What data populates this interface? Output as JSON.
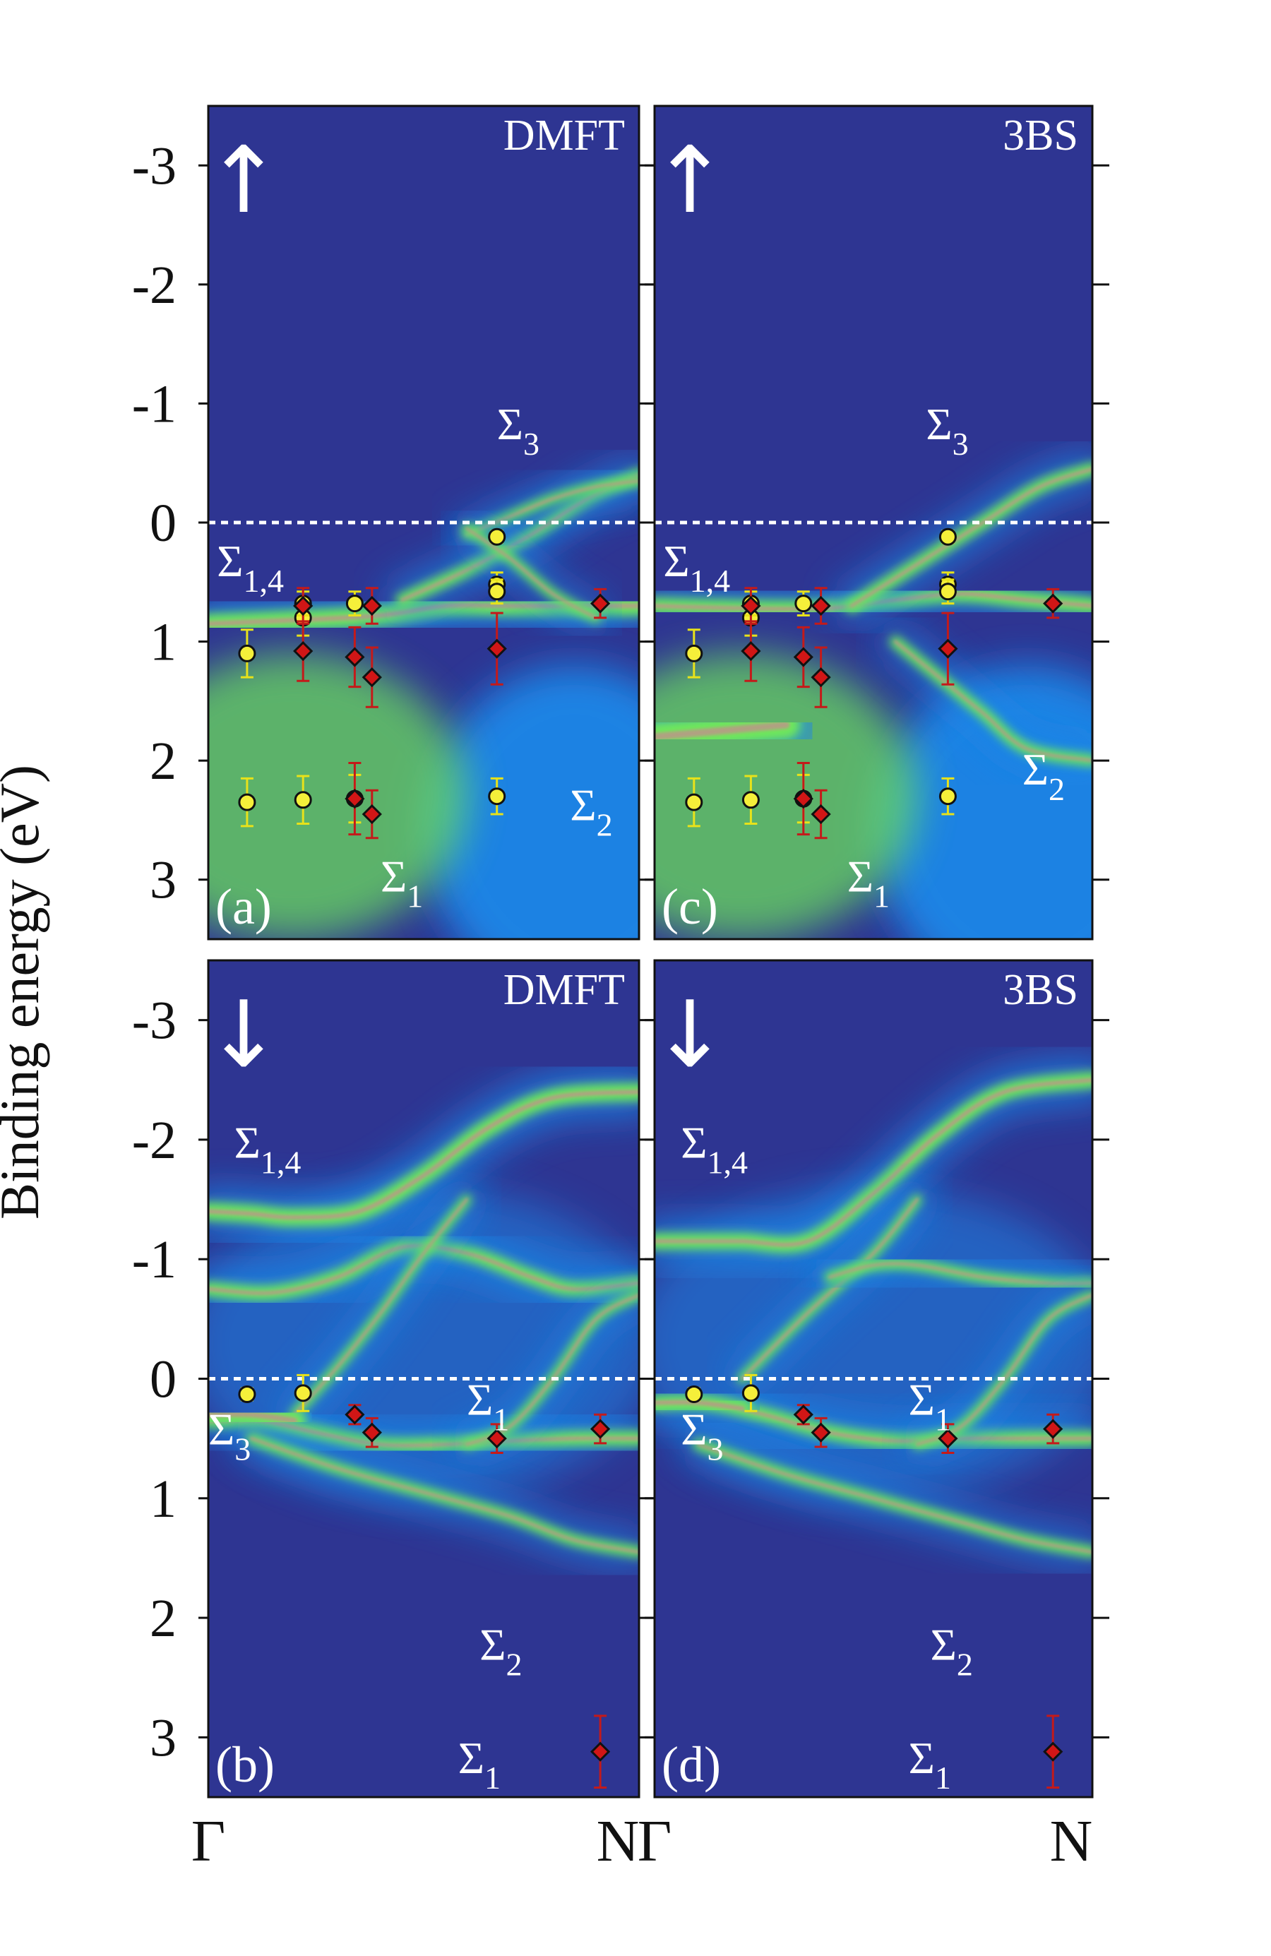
{
  "y_axis_label": "Binding energy (eV)",
  "colors": {
    "background": "#2e3592",
    "band_green": "#6fe85a",
    "band_core": "#b89a86",
    "water_blue": "#1c87e8",
    "circle_fill": "#f5ef3a",
    "diamond_fill": "#d11616",
    "yellow_err": "#e8e21a",
    "red_err": "#c41a1a",
    "fermi_line": "#ffffff"
  },
  "chart_data": [
    {
      "id": "a",
      "type": "heatmap",
      "title": "DMFT",
      "panel_label": "(a)",
      "spin": "↑",
      "ylabel": "Binding energy (eV)",
      "ylim": [
        3.5,
        -3.5
      ],
      "yticks": [
        "-3",
        "-2",
        "-1",
        "0",
        "1",
        "2",
        "3"
      ],
      "ytick_values": [
        -3,
        -2,
        -1,
        0,
        1,
        2,
        3
      ],
      "xticks": [
        "Γ",
        "N"
      ],
      "xlim": [
        0,
        1
      ],
      "fermi_level": 0,
      "labels": [
        {
          "base": "Σ",
          "sub": "1,4",
          "x": 0.02,
          "y": 0.45
        },
        {
          "base": "Σ",
          "sub": "3",
          "x": 0.67,
          "y": -0.7
        },
        {
          "base": "Σ",
          "sub": "1",
          "x": 0.4,
          "y": 3.1
        },
        {
          "base": "Σ",
          "sub": "2",
          "x": 0.84,
          "y": 2.5
        }
      ],
      "bands": [
        {
          "x": [
            0,
            0.2,
            0.4,
            0.55,
            0.7,
            0.85,
            1.0
          ],
          "y": [
            0.85,
            0.82,
            0.78,
            0.7,
            0.7,
            0.7,
            0.7
          ],
          "width": 0.12
        },
        {
          "x": [
            0.45,
            0.6,
            0.75,
            0.88,
            1.0
          ],
          "y": [
            0.65,
            0.4,
            0.1,
            -0.2,
            -0.4
          ],
          "width": 0.08
        },
        {
          "x": [
            0.6,
            0.7,
            0.8,
            0.9,
            1.0
          ],
          "y": [
            0.1,
            -0.05,
            -0.2,
            -0.3,
            -0.35
          ],
          "width": 0.06
        },
        {
          "x": [
            0.6,
            0.7,
            0.8,
            0.9
          ],
          "y": [
            0.05,
            0.3,
            0.6,
            0.8
          ],
          "width": 0.06
        }
      ],
      "circles": [
        {
          "x": 0.09,
          "y": 1.1,
          "err": 0.2
        },
        {
          "x": 0.09,
          "y": 2.35,
          "err": 0.2
        },
        {
          "x": 0.22,
          "y": 0.8,
          "err": 0.15
        },
        {
          "x": 0.22,
          "y": 0.68,
          "err": 0.1
        },
        {
          "x": 0.22,
          "y": 2.33,
          "err": 0.2
        },
        {
          "x": 0.34,
          "y": 0.68,
          "err": 0.1
        },
        {
          "x": 0.34,
          "y": 2.32,
          "err": 0.2
        },
        {
          "x": 0.67,
          "y": 0.12,
          "err": 0.05
        },
        {
          "x": 0.67,
          "y": 0.52,
          "err": 0.1
        },
        {
          "x": 0.67,
          "y": 0.58,
          "err": 0.1
        },
        {
          "x": 0.67,
          "y": 2.3,
          "err": 0.15
        }
      ],
      "diamonds": [
        {
          "x": 0.22,
          "y": 1.08,
          "err": 0.25
        },
        {
          "x": 0.22,
          "y": 0.7,
          "err": 0.15
        },
        {
          "x": 0.34,
          "y": 1.13,
          "err": 0.25
        },
        {
          "x": 0.34,
          "y": 2.32,
          "err": 0.3
        },
        {
          "x": 0.38,
          "y": 0.7,
          "err": 0.15
        },
        {
          "x": 0.38,
          "y": 1.3,
          "err": 0.25
        },
        {
          "x": 0.38,
          "y": 2.45,
          "err": 0.2
        },
        {
          "x": 0.67,
          "y": 1.06,
          "err": 0.3
        },
        {
          "x": 0.91,
          "y": 0.68,
          "err": 0.12
        }
      ]
    },
    {
      "id": "c",
      "type": "heatmap",
      "title": "3BS",
      "panel_label": "(c)",
      "spin": "↑",
      "ylabel": "Binding energy (eV)",
      "ylim": [
        3.5,
        -3.5
      ],
      "yticks": [
        "-3",
        "-2",
        "-1",
        "0",
        "1",
        "2",
        "3"
      ],
      "ytick_values": [
        -3,
        -2,
        -1,
        0,
        1,
        2,
        3
      ],
      "xticks": [
        "Γ",
        "N"
      ],
      "xlim": [
        0,
        1
      ],
      "fermi_level": 0,
      "labels": [
        {
          "base": "Σ",
          "sub": "1,4",
          "x": 0.02,
          "y": 0.45
        },
        {
          "base": "Σ",
          "sub": "3",
          "x": 0.62,
          "y": -0.7
        },
        {
          "base": "Σ",
          "sub": "1",
          "x": 0.44,
          "y": 3.1
        },
        {
          "base": "Σ",
          "sub": "2",
          "x": 0.84,
          "y": 2.2
        }
      ],
      "bands": [
        {
          "x": [
            0,
            0.2,
            0.4,
            0.55,
            0.7,
            0.85,
            1.0
          ],
          "y": [
            0.7,
            0.72,
            0.72,
            0.65,
            0.6,
            0.65,
            0.7
          ],
          "width": 0.1
        },
        {
          "x": [
            0.45,
            0.6,
            0.75,
            0.88,
            1.0
          ],
          "y": [
            0.7,
            0.35,
            0.0,
            -0.3,
            -0.45
          ],
          "width": 0.08
        },
        {
          "x": [
            0.55,
            0.65,
            0.75,
            0.85,
            1.0
          ],
          "y": [
            1.0,
            1.3,
            1.6,
            1.9,
            2.0
          ],
          "width": 0.07
        },
        {
          "x": [
            0,
            0.15,
            0.3
          ],
          "y": [
            1.8,
            1.75,
            1.7
          ],
          "width": 0.18
        }
      ],
      "circles": [
        {
          "x": 0.09,
          "y": 1.1,
          "err": 0.2
        },
        {
          "x": 0.09,
          "y": 2.35,
          "err": 0.2
        },
        {
          "x": 0.22,
          "y": 0.8,
          "err": 0.15
        },
        {
          "x": 0.22,
          "y": 0.68,
          "err": 0.1
        },
        {
          "x": 0.22,
          "y": 2.33,
          "err": 0.2
        },
        {
          "x": 0.34,
          "y": 0.68,
          "err": 0.1
        },
        {
          "x": 0.34,
          "y": 2.32,
          "err": 0.2
        },
        {
          "x": 0.67,
          "y": 0.12,
          "err": 0.05
        },
        {
          "x": 0.67,
          "y": 0.52,
          "err": 0.1
        },
        {
          "x": 0.67,
          "y": 0.58,
          "err": 0.1
        },
        {
          "x": 0.67,
          "y": 2.3,
          "err": 0.15
        }
      ],
      "diamonds": [
        {
          "x": 0.22,
          "y": 1.08,
          "err": 0.25
        },
        {
          "x": 0.22,
          "y": 0.7,
          "err": 0.15
        },
        {
          "x": 0.34,
          "y": 1.13,
          "err": 0.25
        },
        {
          "x": 0.34,
          "y": 2.32,
          "err": 0.3
        },
        {
          "x": 0.38,
          "y": 0.7,
          "err": 0.15
        },
        {
          "x": 0.38,
          "y": 1.3,
          "err": 0.25
        },
        {
          "x": 0.38,
          "y": 2.45,
          "err": 0.2
        },
        {
          "x": 0.67,
          "y": 1.06,
          "err": 0.3
        },
        {
          "x": 0.91,
          "y": 0.68,
          "err": 0.12
        }
      ]
    },
    {
      "id": "b",
      "type": "heatmap",
      "title": "DMFT",
      "panel_label": "(b)",
      "spin": "↓",
      "ylabel": "Binding energy (eV)",
      "ylim": [
        3.5,
        -3.5
      ],
      "yticks": [
        "-3",
        "-2",
        "-1",
        "0",
        "1",
        "2",
        "3"
      ],
      "ytick_values": [
        -3,
        -2,
        -1,
        0,
        1,
        2,
        3
      ],
      "xticks": [
        "Γ",
        "N"
      ],
      "xlim": [
        0,
        1
      ],
      "fermi_level": 0,
      "labels": [
        {
          "base": "Σ",
          "sub": "1,4",
          "x": 0.06,
          "y": -1.85
        },
        {
          "base": "Σ",
          "sub": "3",
          "x": 0.0,
          "y": 0.55
        },
        {
          "base": "Σ",
          "sub": "1",
          "x": 0.6,
          "y": 0.3
        },
        {
          "base": "Σ",
          "sub": "2",
          "x": 0.63,
          "y": 2.35
        },
        {
          "base": "Σ",
          "sub": "1",
          "x": 0.58,
          "y": 3.3
        }
      ],
      "bands": [
        {
          "x": [
            0,
            0.1,
            0.2,
            0.35,
            0.5,
            0.65,
            0.8,
            1.0
          ],
          "y": [
            -1.4,
            -1.38,
            -1.35,
            -1.4,
            -1.7,
            -2.1,
            -2.35,
            -2.4
          ],
          "width": 0.11
        },
        {
          "x": [
            0,
            0.15,
            0.3,
            0.45,
            0.6,
            0.75,
            0.85,
            1.0
          ],
          "y": [
            -0.75,
            -0.72,
            -0.85,
            -1.1,
            -1.05,
            -0.85,
            -0.75,
            -0.8
          ],
          "width": 0.09
        },
        {
          "x": [
            0.2,
            0.3,
            0.4,
            0.5,
            0.6
          ],
          "y": [
            0.3,
            -0.1,
            -0.55,
            -1.05,
            -1.5
          ],
          "width": 0.06
        },
        {
          "x": [
            0,
            0.12,
            0.25,
            0.4,
            0.55,
            0.7,
            0.85,
            1.0
          ],
          "y": [
            0.35,
            0.35,
            0.45,
            0.55,
            0.55,
            0.52,
            0.5,
            0.5
          ],
          "width": 0.09
        },
        {
          "x": [
            0.6,
            0.7,
            0.8,
            0.9,
            1.0
          ],
          "y": [
            0.55,
            0.4,
            0.0,
            -0.5,
            -0.7
          ],
          "width": 0.06
        },
        {
          "x": [
            0.1,
            0.3,
            0.5,
            0.7,
            0.85,
            1.0
          ],
          "y": [
            0.5,
            0.75,
            0.95,
            1.15,
            1.35,
            1.45
          ],
          "width": 0.07
        },
        {
          "x": [
            0,
            0.1,
            0.2
          ],
          "y": [
            0.3,
            0.3,
            0.35
          ],
          "width": 0.14
        }
      ],
      "circles": [
        {
          "x": 0.09,
          "y": 0.13,
          "err": 0.05
        },
        {
          "x": 0.22,
          "y": 0.12,
          "err": 0.15
        }
      ],
      "diamonds": [
        {
          "x": 0.34,
          "y": 0.3,
          "err": 0.08
        },
        {
          "x": 0.38,
          "y": 0.45,
          "err": 0.12
        },
        {
          "x": 0.67,
          "y": 0.5,
          "err": 0.12
        },
        {
          "x": 0.91,
          "y": 0.42,
          "err": 0.12
        },
        {
          "x": 0.91,
          "y": 3.12,
          "err": 0.3
        }
      ]
    },
    {
      "id": "d",
      "type": "heatmap",
      "title": "3BS",
      "panel_label": "(d)",
      "spin": "↓",
      "ylabel": "Binding energy (eV)",
      "ylim": [
        3.5,
        -3.5
      ],
      "yticks": [
        "-3",
        "-2",
        "-1",
        "0",
        "1",
        "2",
        "3"
      ],
      "ytick_values": [
        -3,
        -2,
        -1,
        0,
        1,
        2,
        3
      ],
      "xticks": [
        "Γ",
        "N"
      ],
      "xlim": [
        0,
        1
      ],
      "fermi_level": 0,
      "labels": [
        {
          "base": "Σ",
          "sub": "1,4",
          "x": 0.06,
          "y": -1.85
        },
        {
          "base": "Σ",
          "sub": "3",
          "x": 0.06,
          "y": 0.55
        },
        {
          "base": "Σ",
          "sub": "1",
          "x": 0.58,
          "y": 0.3
        },
        {
          "base": "Σ",
          "sub": "2",
          "x": 0.63,
          "y": 2.35
        },
        {
          "base": "Σ",
          "sub": "1",
          "x": 0.58,
          "y": 3.3
        }
      ],
      "bands": [
        {
          "x": [
            0,
            0.1,
            0.2,
            0.35,
            0.5,
            0.65,
            0.8,
            1.0
          ],
          "y": [
            -1.15,
            -1.15,
            -1.15,
            -1.15,
            -1.55,
            -2.05,
            -2.4,
            -2.5
          ],
          "width": 0.1
        },
        {
          "x": [
            0.2,
            0.35,
            0.5,
            0.6
          ],
          "y": [
            0.0,
            -0.55,
            -1.05,
            -1.5
          ],
          "width": 0.06
        },
        {
          "x": [
            0.4,
            0.5,
            0.6,
            0.75,
            0.9,
            1.0
          ],
          "y": [
            -0.85,
            -0.95,
            -0.95,
            -0.85,
            -0.8,
            -0.8
          ],
          "width": 0.07
        },
        {
          "x": [
            0,
            0.12,
            0.25,
            0.4,
            0.55,
            0.7,
            0.85,
            1.0
          ],
          "y": [
            0.2,
            0.2,
            0.3,
            0.45,
            0.52,
            0.5,
            0.5,
            0.5
          ],
          "width": 0.09
        },
        {
          "x": [
            0.6,
            0.7,
            0.8,
            0.9,
            1.0
          ],
          "y": [
            0.55,
            0.4,
            0.0,
            -0.5,
            -0.7
          ],
          "width": 0.06
        },
        {
          "x": [
            0.1,
            0.3,
            0.5,
            0.7,
            0.85,
            1.0
          ],
          "y": [
            0.55,
            0.8,
            1.0,
            1.2,
            1.35,
            1.45
          ],
          "width": 0.07
        },
        {
          "x": [
            0,
            0.1,
            0.2
          ],
          "y": [
            0.2,
            0.2,
            0.25
          ],
          "width": 0.12
        }
      ],
      "circles": [
        {
          "x": 0.09,
          "y": 0.13,
          "err": 0.05
        },
        {
          "x": 0.22,
          "y": 0.12,
          "err": 0.15
        }
      ],
      "diamonds": [
        {
          "x": 0.34,
          "y": 0.3,
          "err": 0.08
        },
        {
          "x": 0.38,
          "y": 0.45,
          "err": 0.12
        },
        {
          "x": 0.67,
          "y": 0.5,
          "err": 0.12
        },
        {
          "x": 0.91,
          "y": 0.42,
          "err": 0.12
        },
        {
          "x": 0.91,
          "y": 3.12,
          "err": 0.3
        }
      ]
    }
  ]
}
